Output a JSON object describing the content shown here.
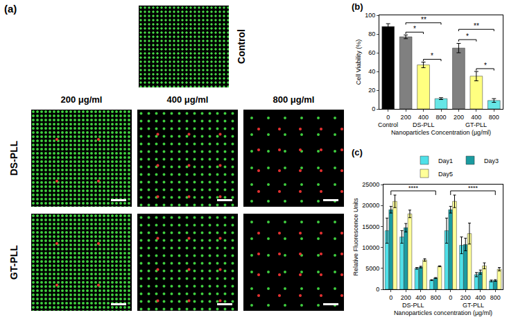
{
  "panel_a": {
    "panel_label": "(a)",
    "control_label": "Control",
    "columns": [
      "200 μg/ml",
      "400 μg/ml",
      "800 μg/ml"
    ],
    "rows": [
      "DS-PLL",
      "GT-PLL"
    ]
  },
  "chart_data": [
    {
      "panel_label": "(b)",
      "type": "bar",
      "xlabel": "Nanoparticles Concentration (μg/ml)",
      "ylabel": "Cell Viability (%)",
      "categories": [
        "0",
        "200",
        "400",
        "800",
        "200",
        "400",
        "800"
      ],
      "groups": [
        {
          "label": "Control",
          "from": 0,
          "to": 0
        },
        {
          "label": "DS-PLL",
          "from": 1,
          "to": 3
        },
        {
          "label": "GT-PLL",
          "from": 4,
          "to": 6
        }
      ],
      "values": [
        88,
        77,
        47,
        11,
        65,
        35,
        9
      ],
      "errors": [
        3,
        2,
        3,
        1,
        5,
        5,
        2
      ],
      "colors": [
        "#000000",
        "#808080",
        "#ffff80",
        "#66e6e6",
        "#808080",
        "#ffff80",
        "#66e6e6"
      ],
      "ylim": [
        0,
        100
      ],
      "yticks": [
        0,
        20,
        40,
        60,
        80,
        100
      ],
      "significance": [
        {
          "from": 1,
          "to": 2,
          "y": 82,
          "label": "*"
        },
        {
          "from": 1,
          "to": 3,
          "y": 92,
          "label": "**"
        },
        {
          "from": 2,
          "to": 3,
          "y": 53,
          "label": "*"
        },
        {
          "from": 4,
          "to": 5,
          "y": 74,
          "label": "*"
        },
        {
          "from": 4,
          "to": 6,
          "y": 85,
          "label": "**"
        },
        {
          "from": 5,
          "to": 6,
          "y": 43,
          "label": "*"
        }
      ]
    },
    {
      "panel_label": "(c)",
      "type": "bar",
      "xlabel": "Nanoparticles concentration (μg/ml)",
      "ylabel": "Relative Fluorescence Units",
      "categories": [
        "0",
        "200",
        "400",
        "800",
        "0",
        "200",
        "400",
        "800"
      ],
      "groups": [
        {
          "label": "DS-PLL",
          "from": 0,
          "to": 3
        },
        {
          "label": "GT-PLL",
          "from": 4,
          "to": 7
        }
      ],
      "series": [
        {
          "name": "Day1",
          "color": "#4fe0e8",
          "values": [
            14000,
            12500,
            5000,
            2200,
            14000,
            10500,
            3500,
            2000
          ],
          "errors": [
            3000,
            1500,
            200,
            100,
            3000,
            2000,
            500,
            200
          ]
        },
        {
          "name": "Day3",
          "color": "#1a9ba0",
          "values": [
            19000,
            14700,
            5300,
            2700,
            19000,
            10700,
            4100,
            2100
          ],
          "errors": [
            800,
            1000,
            200,
            100,
            800,
            1500,
            500,
            200
          ]
        },
        {
          "name": "Day5",
          "color": "#ffff99",
          "values": [
            21000,
            18000,
            7000,
            5500,
            21000,
            13300,
            5600,
            4800
          ],
          "errors": [
            1500,
            900,
            300,
            100,
            1500,
            2500,
            700,
            400
          ]
        }
      ],
      "ylim": [
        0,
        25000
      ],
      "yticks": [
        0,
        5000,
        10000,
        15000,
        20000,
        25000
      ],
      "legend": "top",
      "significance": [
        {
          "from": 0,
          "to": 3,
          "y": 23500,
          "label": "****"
        },
        {
          "from": 4,
          "to": 7,
          "y": 23500,
          "label": "****"
        }
      ]
    }
  ]
}
